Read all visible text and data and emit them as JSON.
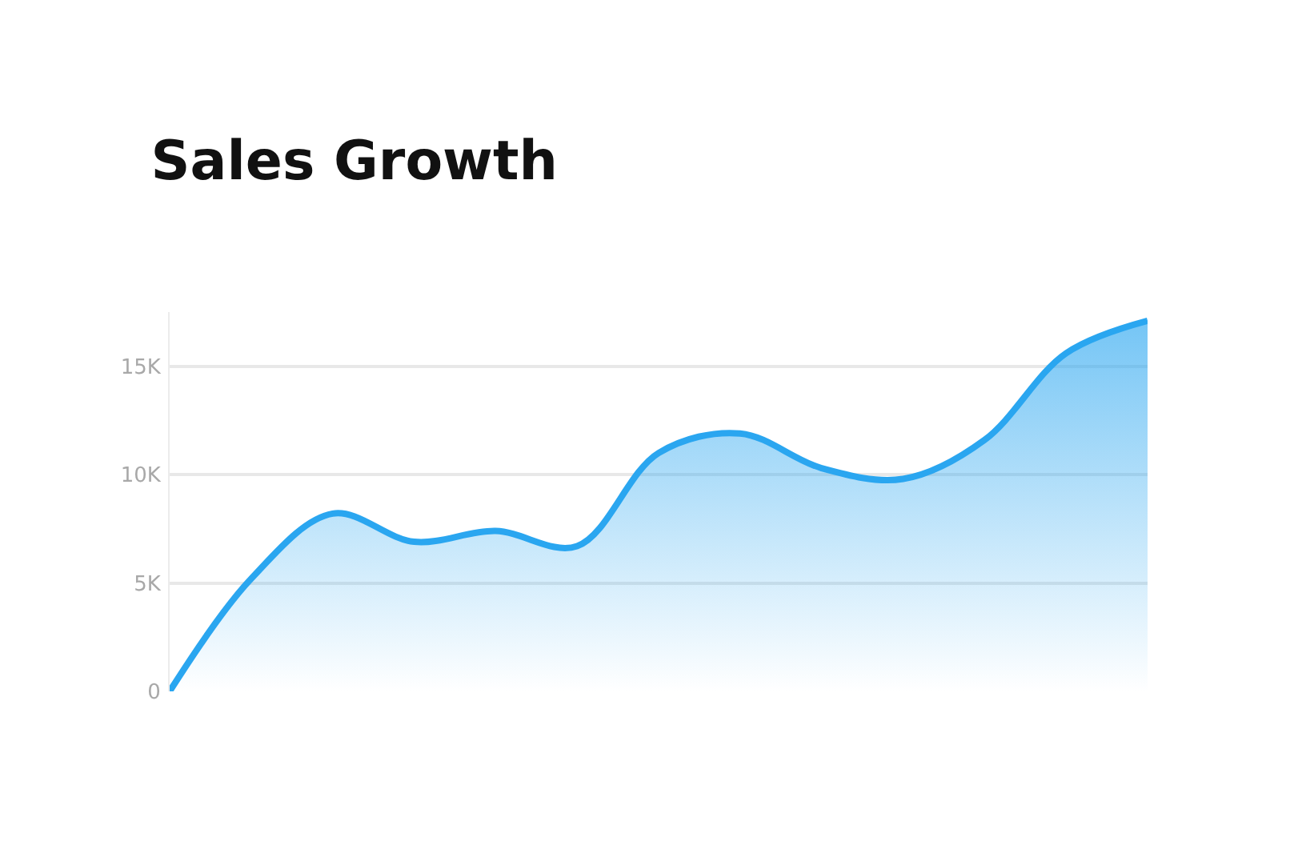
{
  "chart_data": {
    "type": "area",
    "title": "Sales Growth",
    "categories": [
      null,
      null,
      null,
      null,
      null,
      null,
      null,
      null,
      null,
      null,
      null,
      null,
      null
    ],
    "series": [
      {
        "color": "#2aa6f0",
        "values": [
          0,
          5200,
          8200,
          6900,
          7400,
          6700,
          11000,
          11900,
          10300,
          9800,
          11600,
          15600,
          17100
        ]
      }
    ],
    "ylim": [
      0,
      17500
    ],
    "yticks": [
      {
        "value": 0,
        "label": "0"
      },
      {
        "value": 5000,
        "label": "5K"
      },
      {
        "value": 10000,
        "label": "10K"
      },
      {
        "value": 15000,
        "label": "15K"
      }
    ],
    "grid": "y",
    "legend": false
  }
}
